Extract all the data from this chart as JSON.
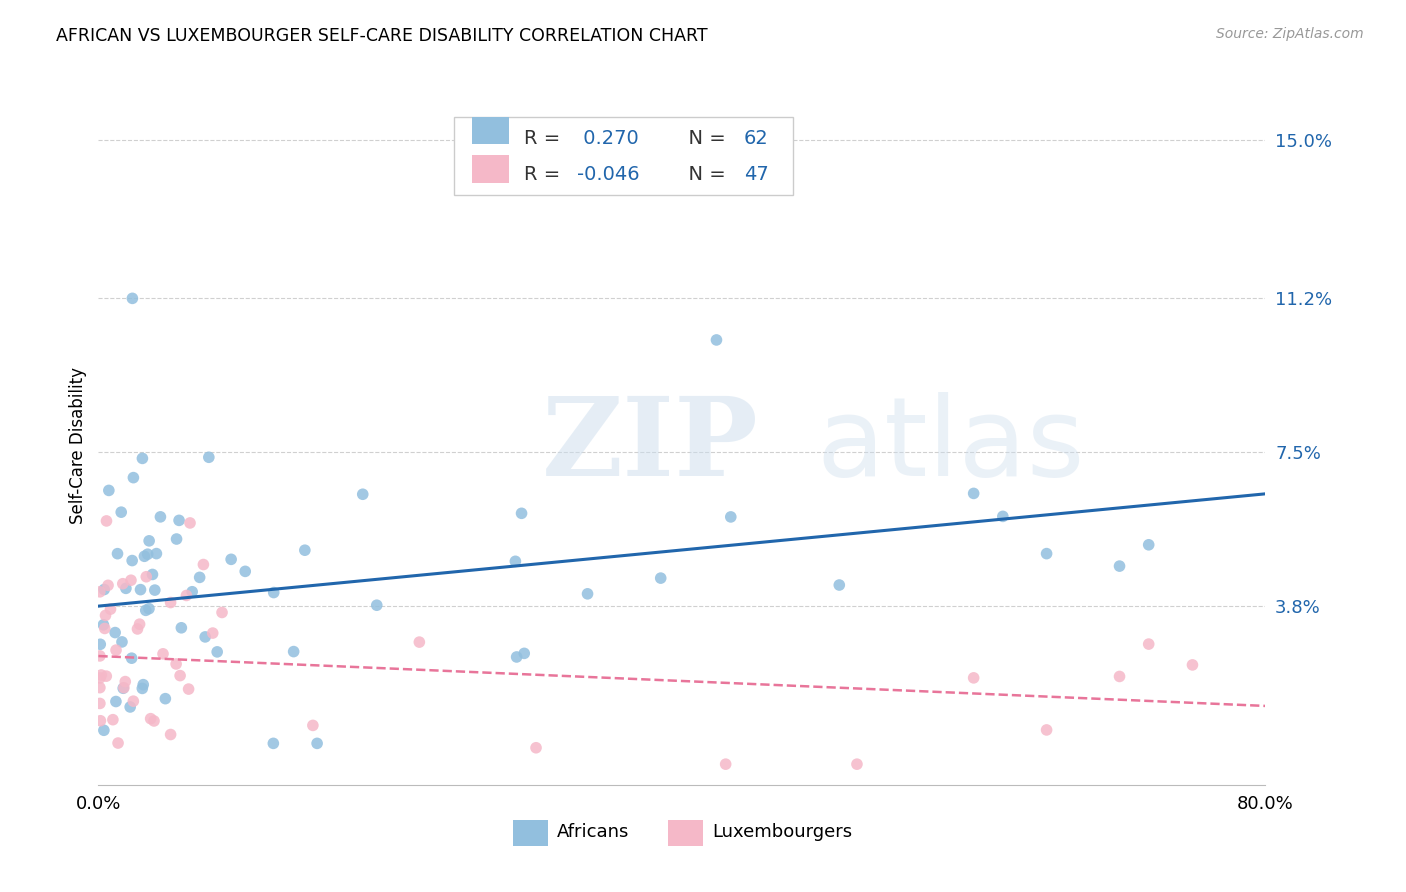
{
  "title": "AFRICAN VS LUXEMBOURGER SELF-CARE DISABILITY CORRELATION CHART",
  "source": "Source: ZipAtlas.com",
  "ylabel_label": "Self-Care Disability",
  "yticks": [
    0.038,
    0.075,
    0.112,
    0.15
  ],
  "ytick_labels": [
    "3.8%",
    "7.5%",
    "11.2%",
    "15.0%"
  ],
  "xlim": [
    0.0,
    0.8
  ],
  "ylim": [
    -0.005,
    0.158
  ],
  "african_color": "#92bfde",
  "luxembourger_color": "#f5b8c8",
  "african_line_color": "#2166ac",
  "luxembourger_line_color": "#e8759a",
  "legend_R_african": "0.270",
  "legend_N_african": "62",
  "legend_R_luxembourger": "-0.046",
  "legend_N_luxembourger": "47",
  "watermark_zip": "ZIP",
  "watermark_atlas": "atlas",
  "background_color": "#ffffff",
  "grid_color": "#d0d0d0",
  "african_line_y0": 0.038,
  "african_line_y1": 0.065,
  "luxembourger_line_y0": 0.026,
  "luxembourger_line_y1": 0.014
}
